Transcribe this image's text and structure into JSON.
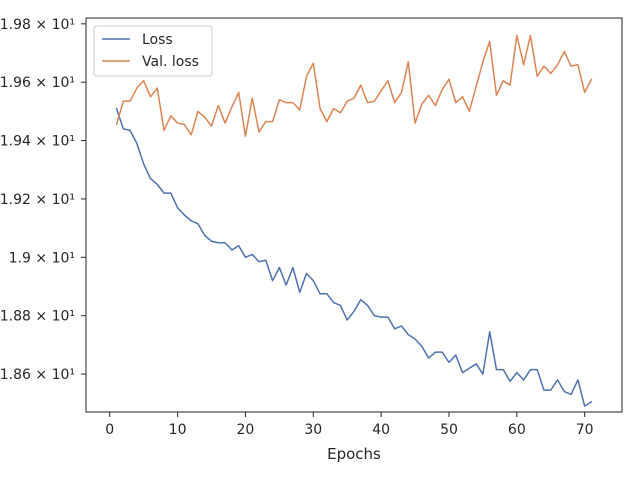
{
  "chart_data": {
    "type": "line",
    "title": "",
    "xlabel": "Epochs",
    "ylabel": "",
    "xlim": [
      -3.5,
      75.5
    ],
    "ylim": [
      18.47,
      19.82
    ],
    "grid": false,
    "legend_position": "top-left",
    "x_ticks": [
      0,
      10,
      20,
      30,
      40,
      50,
      60,
      70
    ],
    "x_tick_labels": [
      "0",
      "10",
      "20",
      "30",
      "40",
      "50",
      "60",
      "70"
    ],
    "y_ticks": [
      18.6,
      18.8,
      19.0,
      19.2,
      19.4,
      19.6,
      19.8
    ],
    "y_tick_labels": [
      "1.86 × 10¹",
      "1.88 × 10¹",
      "1.9 × 10¹",
      "1.92 × 10¹",
      "1.94 × 10¹",
      "1.96 × 10¹",
      "1.98 × 10¹"
    ],
    "x": [
      1,
      2,
      3,
      4,
      5,
      6,
      7,
      8,
      9,
      10,
      11,
      12,
      13,
      14,
      15,
      16,
      17,
      18,
      19,
      20,
      21,
      22,
      23,
      24,
      25,
      26,
      27,
      28,
      29,
      30,
      31,
      32,
      33,
      34,
      35,
      36,
      37,
      38,
      39,
      40,
      41,
      42,
      43,
      44,
      45,
      46,
      47,
      48,
      49,
      50,
      51,
      52,
      53,
      54,
      55,
      56,
      57,
      58,
      59,
      60,
      61,
      62,
      63,
      64,
      65,
      66,
      67,
      68,
      69,
      70,
      71
    ],
    "series": [
      {
        "name": "Loss",
        "color": "#4c72b0",
        "values": [
          19.51,
          19.44,
          19.435,
          19.39,
          19.32,
          19.27,
          19.25,
          19.22,
          19.22,
          19.17,
          19.145,
          19.125,
          19.115,
          19.075,
          19.055,
          19.05,
          19.05,
          19.025,
          19.04,
          19.0,
          19.01,
          18.985,
          18.99,
          18.92,
          18.965,
          18.905,
          18.965,
          18.88,
          18.945,
          18.92,
          18.875,
          18.875,
          18.845,
          18.835,
          18.785,
          18.815,
          18.855,
          18.835,
          18.8,
          18.795,
          18.795,
          18.755,
          18.765,
          18.735,
          18.72,
          18.695,
          18.655,
          18.675,
          18.675,
          18.64,
          18.665,
          18.605,
          18.62,
          18.635,
          18.6,
          18.745,
          18.615,
          18.615,
          18.575,
          18.605,
          18.58,
          18.615,
          18.615,
          18.545,
          18.545,
          18.58,
          18.54,
          18.53,
          18.58,
          18.49,
          18.505
        ]
      },
      {
        "name": "Val. loss",
        "color": "#dd8452",
        "values": [
          19.455,
          19.535,
          19.535,
          19.58,
          19.605,
          19.55,
          19.58,
          19.435,
          19.485,
          19.46,
          19.455,
          19.42,
          19.5,
          19.48,
          19.45,
          19.52,
          19.46,
          19.515,
          19.565,
          19.415,
          19.545,
          19.43,
          19.465,
          19.465,
          19.54,
          19.53,
          19.53,
          19.505,
          19.62,
          19.665,
          19.51,
          19.465,
          19.51,
          19.495,
          19.535,
          19.545,
          19.59,
          19.53,
          19.535,
          19.57,
          19.605,
          19.53,
          19.565,
          19.67,
          19.46,
          19.525,
          19.555,
          19.52,
          19.575,
          19.61,
          19.53,
          19.55,
          19.5,
          19.585,
          19.67,
          19.74,
          19.555,
          19.605,
          19.59,
          19.76,
          19.66,
          19.76,
          19.62,
          19.655,
          19.63,
          19.66,
          19.705,
          19.655,
          19.66,
          19.565,
          19.61
        ]
      }
    ]
  }
}
